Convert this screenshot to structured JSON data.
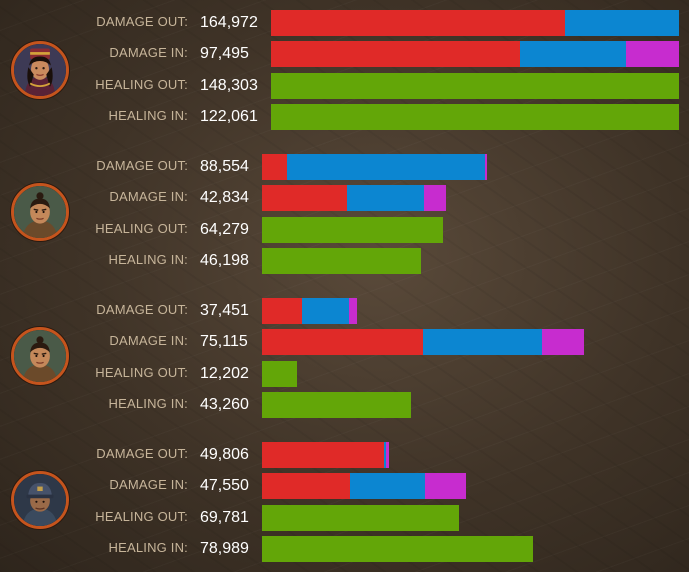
{
  "labels": {
    "damage_out": "DAMAGE OUT:",
    "damage_in": "DAMAGE IN:",
    "healing_out": "HEALING OUT:",
    "healing_in": "HEALING IN:"
  },
  "colors": {
    "physical": "#e02a28",
    "magical": "#0c86d1",
    "true_damage": "#c72ccf",
    "healing": "#63a608",
    "avatar_border": "#c5541d"
  },
  "players": [
    {
      "portrait": "female-champion-portrait-icon",
      "damage_out": {
        "value": "164,972",
        "parts": [
          0.72,
          0.28,
          0
        ]
      },
      "damage_in": {
        "value": "97,495",
        "parts": [
          0.61,
          0.26,
          0.13
        ]
      },
      "healing_out": {
        "value": "148,303"
      },
      "healing_in": {
        "value": "122,061"
      }
    },
    {
      "portrait": "topknot-warrior-portrait-icon",
      "damage_out": {
        "value": "88,554",
        "parts": [
          0.11,
          0.88,
          0.01
        ]
      },
      "damage_in": {
        "value": "42,834",
        "parts": [
          0.46,
          0.42,
          0.12
        ]
      },
      "healing_out": {
        "value": "64,279"
      },
      "healing_in": {
        "value": "46,198"
      }
    },
    {
      "portrait": "topknot-warrior-portrait-icon",
      "damage_out": {
        "value": "37,451",
        "parts": [
          0.42,
          0.5,
          0.08
        ]
      },
      "damage_in": {
        "value": "75,115",
        "parts": [
          0.5,
          0.37,
          0.13
        ]
      },
      "healing_out": {
        "value": "12,202"
      },
      "healing_in": {
        "value": "43,260"
      }
    },
    {
      "portrait": "capped-soldier-portrait-icon",
      "damage_out": {
        "value": "49,806",
        "parts": [
          0.96,
          0.02,
          0.02
        ]
      },
      "damage_in": {
        "value": "47,550",
        "parts": [
          0.43,
          0.37,
          0.2
        ]
      },
      "healing_out": {
        "value": "69,781"
      },
      "healing_in": {
        "value": "78,989"
      }
    }
  ]
}
